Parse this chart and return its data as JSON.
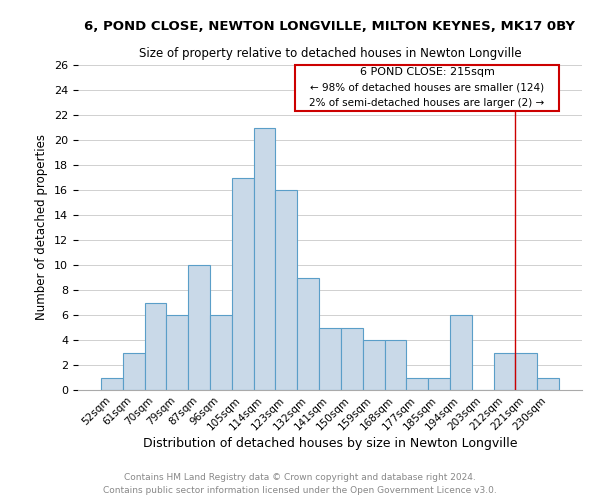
{
  "title": "6, POND CLOSE, NEWTON LONGVILLE, MILTON KEYNES, MK17 0BY",
  "subtitle": "Size of property relative to detached houses in Newton Longville",
  "xlabel": "Distribution of detached houses by size in Newton Longville",
  "ylabel": "Number of detached properties",
  "footnote1": "Contains HM Land Registry data © Crown copyright and database right 2024.",
  "footnote2": "Contains public sector information licensed under the Open Government Licence v3.0.",
  "bin_labels": [
    "52sqm",
    "61sqm",
    "70sqm",
    "79sqm",
    "87sqm",
    "96sqm",
    "105sqm",
    "114sqm",
    "123sqm",
    "132sqm",
    "141sqm",
    "150sqm",
    "159sqm",
    "168sqm",
    "177sqm",
    "185sqm",
    "194sqm",
    "203sqm",
    "212sqm",
    "221sqm",
    "230sqm"
  ],
  "bin_values": [
    1,
    3,
    7,
    6,
    10,
    6,
    17,
    21,
    16,
    9,
    5,
    5,
    4,
    4,
    1,
    1,
    6,
    0,
    3,
    3,
    1
  ],
  "bar_color": "#c9d9e8",
  "bar_edge_color": "#5a9ec8",
  "annotation_text_line1": "6 POND CLOSE: 215sqm",
  "annotation_text_line2": "← 98% of detached houses are smaller (124)",
  "annotation_text_line3": "2% of semi-detached houses are larger (2) →",
  "annotation_box_color": "#cc0000",
  "ylim": [
    0,
    26
  ],
  "yticks": [
    0,
    2,
    4,
    6,
    8,
    10,
    12,
    14,
    16,
    18,
    20,
    22,
    24,
    26
  ]
}
